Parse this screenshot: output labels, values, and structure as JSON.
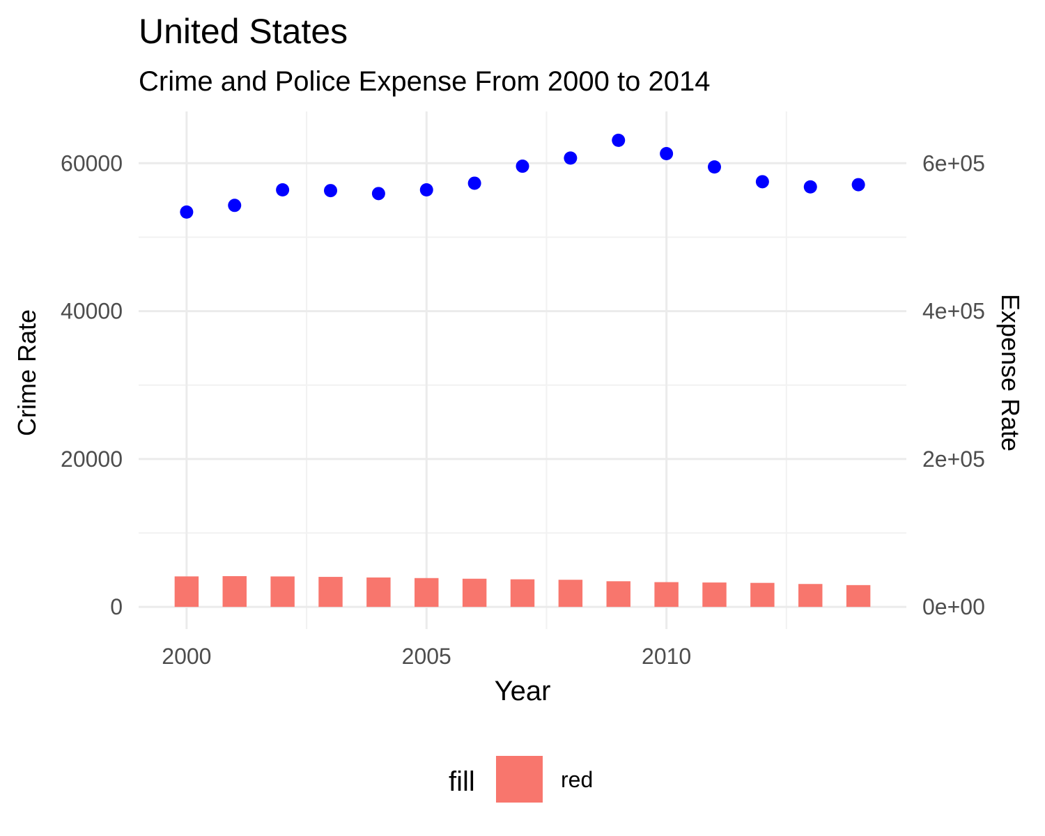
{
  "chart_data": {
    "type": "bar",
    "title": "United States",
    "subtitle": "Crime and Police Expense From 2000 to 2014",
    "xlabel": "Year",
    "ylabel_left": "Crime Rate",
    "ylabel_right": "Expense Rate",
    "x": [
      2000,
      2001,
      2002,
      2003,
      2004,
      2005,
      2006,
      2007,
      2008,
      2009,
      2010,
      2011,
      2012,
      2013,
      2014
    ],
    "x_ticks": [
      2000,
      2005,
      2010
    ],
    "x_tick_labels": [
      "2000",
      "2005",
      "2010"
    ],
    "xlim": [
      1999,
      2015
    ],
    "ylim_left": [
      -3000,
      67000
    ],
    "ylim_right": [
      -30000,
      670000
    ],
    "y_ticks_left": [
      0,
      20000,
      40000,
      60000
    ],
    "y_tick_labels_left": [
      "0",
      "20000",
      "40000",
      "60000"
    ],
    "y_ticks_right": [
      0,
      200000,
      400000,
      600000
    ],
    "y_tick_labels_right": [
      "0e+00",
      "2e+05",
      "4e+05",
      "6e+05"
    ],
    "grid": true,
    "legend_position": "bottom",
    "series": [
      {
        "name": "red",
        "kind": "bar",
        "axis": "left",
        "color": "#F8766D",
        "values": [
          4125,
          4160,
          4120,
          4060,
          3980,
          3900,
          3810,
          3730,
          3670,
          3470,
          3350,
          3300,
          3250,
          3100,
          2950
        ]
      },
      {
        "kind": "point",
        "axis": "right",
        "color": "#0000FF",
        "values": [
          534000,
          543000,
          564000,
          563000,
          559000,
          564000,
          573000,
          596000,
          607000,
          631000,
          613000,
          595000,
          575000,
          568000,
          571000
        ]
      }
    ],
    "legend": {
      "title": "fill",
      "entries": [
        {
          "label": "red",
          "color": "#F8766D"
        }
      ]
    },
    "colors": {
      "left_axis_title": "#FF0000",
      "right_axis_title": "#0000FF",
      "tick_text": "#4d4d4d",
      "grid": "#ebebeb"
    }
  }
}
